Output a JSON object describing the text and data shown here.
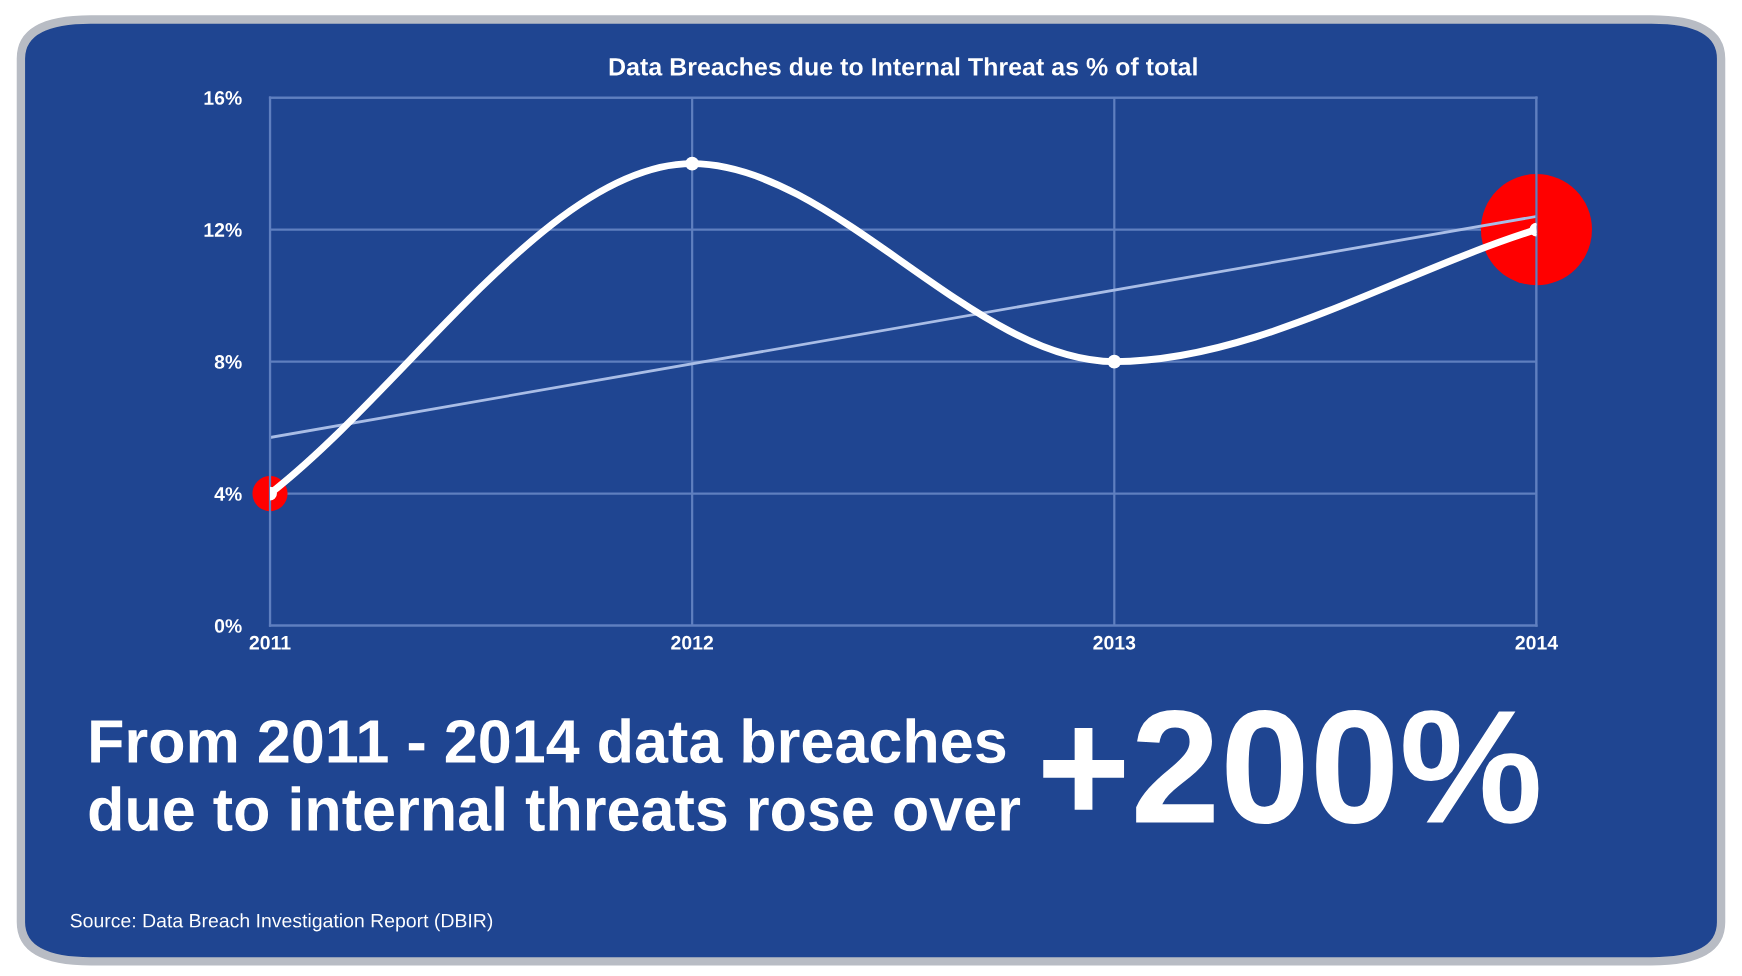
{
  "chart_data": {
    "type": "line",
    "title": "Data Breaches due to Internal Threat as % of total",
    "x": [
      2011,
      2012,
      2013,
      2014
    ],
    "series": [
      {
        "color": "#ffffff",
        "values": [
          4,
          14,
          8,
          12
        ],
        "marker": "circle"
      },
      {
        "type": "line",
        "color": "#a9bde6",
        "x": [
          2011,
          2014
        ],
        "values": [
          5.7,
          12.4
        ],
        "marker": "none"
      },
      {
        "type": "bubble",
        "color": "#ff0000",
        "values": [
          4,
          null,
          null,
          12
        ],
        "sizes": [
          0.1,
          null,
          null,
          1
        ]
      }
    ],
    "xlim": [
      2011,
      2014
    ],
    "xticks": [
      2011,
      2012,
      2013,
      2014
    ],
    "ylim": [
      0,
      16
    ],
    "yticks": [
      {
        "value": 0,
        "label": "0%"
      },
      {
        "value": 4,
        "label": "4%"
      },
      {
        "value": 8,
        "label": "8%"
      },
      {
        "value": 12,
        "label": "12%"
      },
      {
        "value": 16,
        "label": "16%"
      }
    ],
    "grid": true,
    "legend": false,
    "annotations": [
      "From 2011 - 2014 data breaches\ndue to internal threats rose over",
      "+200%",
      "Source: Data Breach Investigation Report (DBIR)"
    ]
  }
}
